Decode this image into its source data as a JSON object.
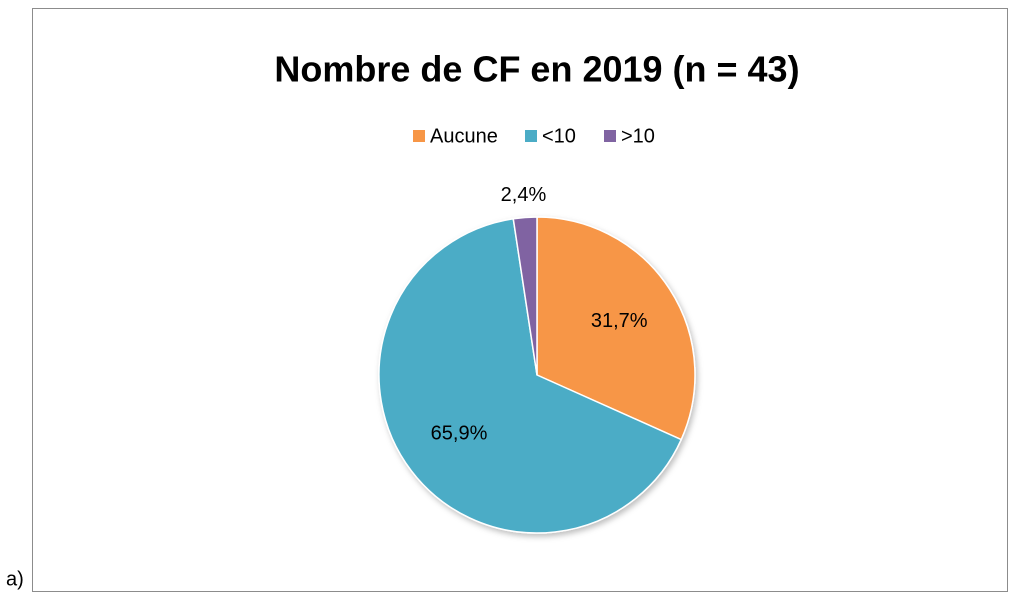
{
  "panel_label": "a)",
  "chart_data": {
    "type": "pie",
    "title": "Nombre de CF en 2019 (n = 43)",
    "categories": [
      "Aucune",
      "<10",
      ">10"
    ],
    "values": [
      31.7,
      65.9,
      2.4
    ],
    "value_labels": [
      "31,7%",
      "65,9%",
      "2,4%"
    ],
    "colors": [
      "#f79646",
      "#4bacc6",
      "#8064a2"
    ],
    "legend": "top"
  }
}
